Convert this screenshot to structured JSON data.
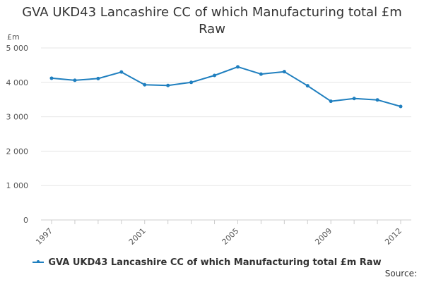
{
  "chart_data": {
    "type": "line",
    "title_lines": [
      "GVA UKD43 Lancashire CC of which Manufacturing total £m",
      "Raw"
    ],
    "ylabel": "£m",
    "ylim": [
      0,
      5000
    ],
    "yticks": [
      0,
      1000,
      2000,
      3000,
      4000,
      5000
    ],
    "ytick_labels": [
      "0",
      "1 000",
      "2 000",
      "3 000",
      "4 000",
      "5 000"
    ],
    "x": [
      1997,
      1998,
      1999,
      2000,
      2001,
      2002,
      2003,
      2004,
      2005,
      2006,
      2007,
      2008,
      2009,
      2010,
      2011,
      2012
    ],
    "xtick_labels": [
      "1997",
      "2001",
      "2005",
      "2009",
      "2012"
    ],
    "series": [
      {
        "name": "GVA UKD43 Lancashire CC of which Manufacturing total £m Raw",
        "color": "#1f7fbf",
        "values": [
          4120,
          4060,
          4110,
          4300,
          3930,
          3910,
          4000,
          4200,
          4450,
          4240,
          4310,
          3900,
          3450,
          3530,
          3490,
          3300
        ]
      }
    ],
    "grid": true,
    "legend_position": "bottom"
  },
  "source_label": "Source:"
}
